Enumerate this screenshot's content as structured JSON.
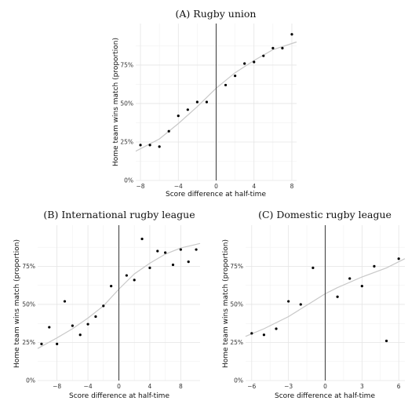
{
  "chart_data": [
    {
      "type": "scatter",
      "panel": "A",
      "title": "(A) Rugby union",
      "xlabel": "Score difference at half-time",
      "ylabel": "Home team wins match (proportion)",
      "xlim": [
        -8.5,
        8.5
      ],
      "ylim": [
        0,
        1.02
      ],
      "x_ticks": [
        -8,
        -4,
        0,
        4,
        8
      ],
      "x_tick_labels": [
        "−8",
        "−4",
        "0",
        "4",
        "8"
      ],
      "y_ticks": [
        0,
        0.25,
        0.5,
        0.75
      ],
      "y_tick_labels": [
        "0%",
        "25%",
        "50%",
        "75%"
      ],
      "reference_line_x": 0,
      "points": [
        {
          "x": -8,
          "y": 0.23
        },
        {
          "x": -7,
          "y": 0.23
        },
        {
          "x": -6,
          "y": 0.22
        },
        {
          "x": -5,
          "y": 0.32
        },
        {
          "x": -4,
          "y": 0.42
        },
        {
          "x": -3,
          "y": 0.46
        },
        {
          "x": -2,
          "y": 0.51
        },
        {
          "x": -1,
          "y": 0.51
        },
        {
          "x": 1,
          "y": 0.62
        },
        {
          "x": 2,
          "y": 0.68
        },
        {
          "x": 3,
          "y": 0.76
        },
        {
          "x": 4,
          "y": 0.77
        },
        {
          "x": 5,
          "y": 0.81
        },
        {
          "x": 6,
          "y": 0.86
        },
        {
          "x": 7,
          "y": 0.86
        },
        {
          "x": 8,
          "y": 0.95
        }
      ],
      "fit": [
        {
          "x": -8.5,
          "y": 0.19
        },
        {
          "x": -6,
          "y": 0.27
        },
        {
          "x": -4,
          "y": 0.37
        },
        {
          "x": -2,
          "y": 0.48
        },
        {
          "x": 0,
          "y": 0.6
        },
        {
          "x": 2,
          "y": 0.7
        },
        {
          "x": 4,
          "y": 0.78
        },
        {
          "x": 6,
          "y": 0.85
        },
        {
          "x": 8.5,
          "y": 0.9
        }
      ]
    },
    {
      "type": "scatter",
      "panel": "B",
      "title": "(B) International rugby league",
      "xlabel": "Score difference at half-time",
      "ylabel": "Home team wins match (proportion)",
      "xlim": [
        -10.5,
        10.5
      ],
      "ylim": [
        0,
        1.02
      ],
      "x_ticks": [
        -8,
        -4,
        0,
        4,
        8
      ],
      "x_tick_labels": [
        "−8",
        "−4",
        "0",
        "4",
        "8"
      ],
      "y_ticks": [
        0,
        0.25,
        0.5,
        0.75
      ],
      "y_tick_labels": [
        "0%",
        "25%",
        "50%",
        "75%"
      ],
      "reference_line_x": 0,
      "points": [
        {
          "x": -10,
          "y": 0.24
        },
        {
          "x": -9,
          "y": 0.35
        },
        {
          "x": -8,
          "y": 0.24
        },
        {
          "x": -7,
          "y": 0.52
        },
        {
          "x": -6,
          "y": 0.36
        },
        {
          "x": -5,
          "y": 0.3
        },
        {
          "x": -4,
          "y": 0.37
        },
        {
          "x": -3,
          "y": 0.42
        },
        {
          "x": -2,
          "y": 0.49
        },
        {
          "x": -1,
          "y": 0.62
        },
        {
          "x": 1,
          "y": 0.69
        },
        {
          "x": 2,
          "y": 0.66
        },
        {
          "x": 3,
          "y": 0.93
        },
        {
          "x": 4,
          "y": 0.74
        },
        {
          "x": 5,
          "y": 0.85
        },
        {
          "x": 6,
          "y": 0.84
        },
        {
          "x": 7,
          "y": 0.76
        },
        {
          "x": 8,
          "y": 0.86
        },
        {
          "x": 9,
          "y": 0.78
        },
        {
          "x": 10,
          "y": 0.86
        }
      ],
      "fit": [
        {
          "x": -10.5,
          "y": 0.21
        },
        {
          "x": -8,
          "y": 0.28
        },
        {
          "x": -6,
          "y": 0.34
        },
        {
          "x": -4,
          "y": 0.41
        },
        {
          "x": -2,
          "y": 0.49
        },
        {
          "x": 0,
          "y": 0.6
        },
        {
          "x": 2,
          "y": 0.7
        },
        {
          "x": 4,
          "y": 0.77
        },
        {
          "x": 6,
          "y": 0.83
        },
        {
          "x": 8,
          "y": 0.87
        },
        {
          "x": 10.5,
          "y": 0.9
        }
      ]
    },
    {
      "type": "scatter",
      "panel": "C",
      "title": "(C) Domestic rugby league",
      "xlabel": "Score difference at half-time",
      "ylabel": "Home team wins match (proportion)",
      "xlim": [
        -6.5,
        6.5
      ],
      "ylim": [
        0,
        1.02
      ],
      "x_ticks": [
        -6,
        -3,
        0,
        3,
        6
      ],
      "x_tick_labels": [
        "−6",
        "−3",
        "0",
        "3",
        "6"
      ],
      "y_ticks": [
        0,
        0.25,
        0.5,
        0.75
      ],
      "y_tick_labels": [
        "0%",
        "25%",
        "50%",
        "75%"
      ],
      "reference_line_x": 0,
      "points": [
        {
          "x": -6,
          "y": 0.31
        },
        {
          "x": -5,
          "y": 0.3
        },
        {
          "x": -4,
          "y": 0.34
        },
        {
          "x": -3,
          "y": 0.52
        },
        {
          "x": -2,
          "y": 0.5
        },
        {
          "x": -1,
          "y": 0.74
        },
        {
          "x": 1,
          "y": 0.55
        },
        {
          "x": 2,
          "y": 0.67
        },
        {
          "x": 3,
          "y": 0.62
        },
        {
          "x": 4,
          "y": 0.75
        },
        {
          "x": 5,
          "y": 0.26
        },
        {
          "x": 6,
          "y": 0.8
        }
      ],
      "fit": [
        {
          "x": -6.5,
          "y": 0.29
        },
        {
          "x": -5,
          "y": 0.34
        },
        {
          "x": -3,
          "y": 0.42
        },
        {
          "x": -1,
          "y": 0.52
        },
        {
          "x": 0,
          "y": 0.57
        },
        {
          "x": 1,
          "y": 0.61
        },
        {
          "x": 3,
          "y": 0.68
        },
        {
          "x": 5,
          "y": 0.74
        },
        {
          "x": 6.5,
          "y": 0.8
        }
      ]
    }
  ]
}
